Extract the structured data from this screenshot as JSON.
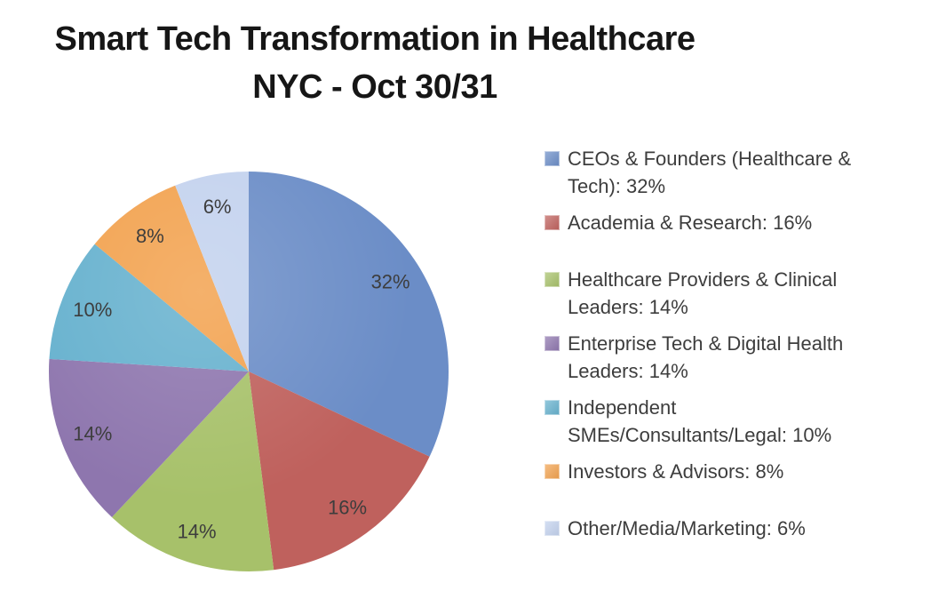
{
  "title": {
    "line1": "Smart Tech Transformation in Healthcare",
    "line2": "NYC - Oct 30/31"
  },
  "colors": {
    "background": "#ffffff",
    "title_text": "#161616",
    "label_text": "#3d3d3d",
    "legend_text": "#3d3d3d"
  },
  "chart_data": {
    "type": "pie",
    "title": "Smart Tech Transformation in Healthcare NYC - Oct 30/31",
    "legend_position": "right",
    "start_angle_deg": 0,
    "direction": "clockwise",
    "slices": [
      {
        "label": "CEOs & Founders (Healthcare & Tech)",
        "value_pct": 32,
        "color": "#6B8DC7"
      },
      {
        "label": "Academia & Research",
        "value_pct": 16,
        "color": "#BF615D"
      },
      {
        "label": "Healthcare Providers & Clinical Leaders",
        "value_pct": 14,
        "color": "#A7C16A"
      },
      {
        "label": "Enterprise Tech & Digital Health Leaders",
        "value_pct": 14,
        "color": "#8E76AE"
      },
      {
        "label": "Independent SMEs/Consultants/Legal",
        "value_pct": 10,
        "color": "#66B1CE"
      },
      {
        "label": "Investors & Advisors",
        "value_pct": 8,
        "color": "#F2A24F"
      },
      {
        "label": "Other/Media/Marketing",
        "value_pct": 6,
        "color": "#C3D2EE"
      }
    ],
    "data_labels": [
      "32%",
      "16%",
      "14%",
      "14%",
      "10%",
      "8%",
      "6%"
    ]
  },
  "legend": {
    "items": [
      {
        "text": "CEOs & Founders (Healthcare &\nTech): 32%",
        "color": "#6B8DC7",
        "spaced": false
      },
      {
        "text": "Academia & Research: 16%",
        "color": "#BF615D",
        "spaced": false
      },
      {
        "text": "Healthcare Providers & Clinical\nLeaders: 14%",
        "color": "#A7C16A",
        "spaced": true
      },
      {
        "text": "Enterprise Tech & Digital Health\nLeaders: 14%",
        "color": "#8E76AE",
        "spaced": false
      },
      {
        "text": "Independent\nSMEs/Consultants/Legal: 10%",
        "color": "#66B1CE",
        "spaced": false
      },
      {
        "text": "Investors & Advisors: 8%",
        "color": "#F2A24F",
        "spaced": false
      },
      {
        "text": "Other/Media/Marketing: 6%",
        "color": "#C3D2EE",
        "spaced": true
      }
    ]
  }
}
